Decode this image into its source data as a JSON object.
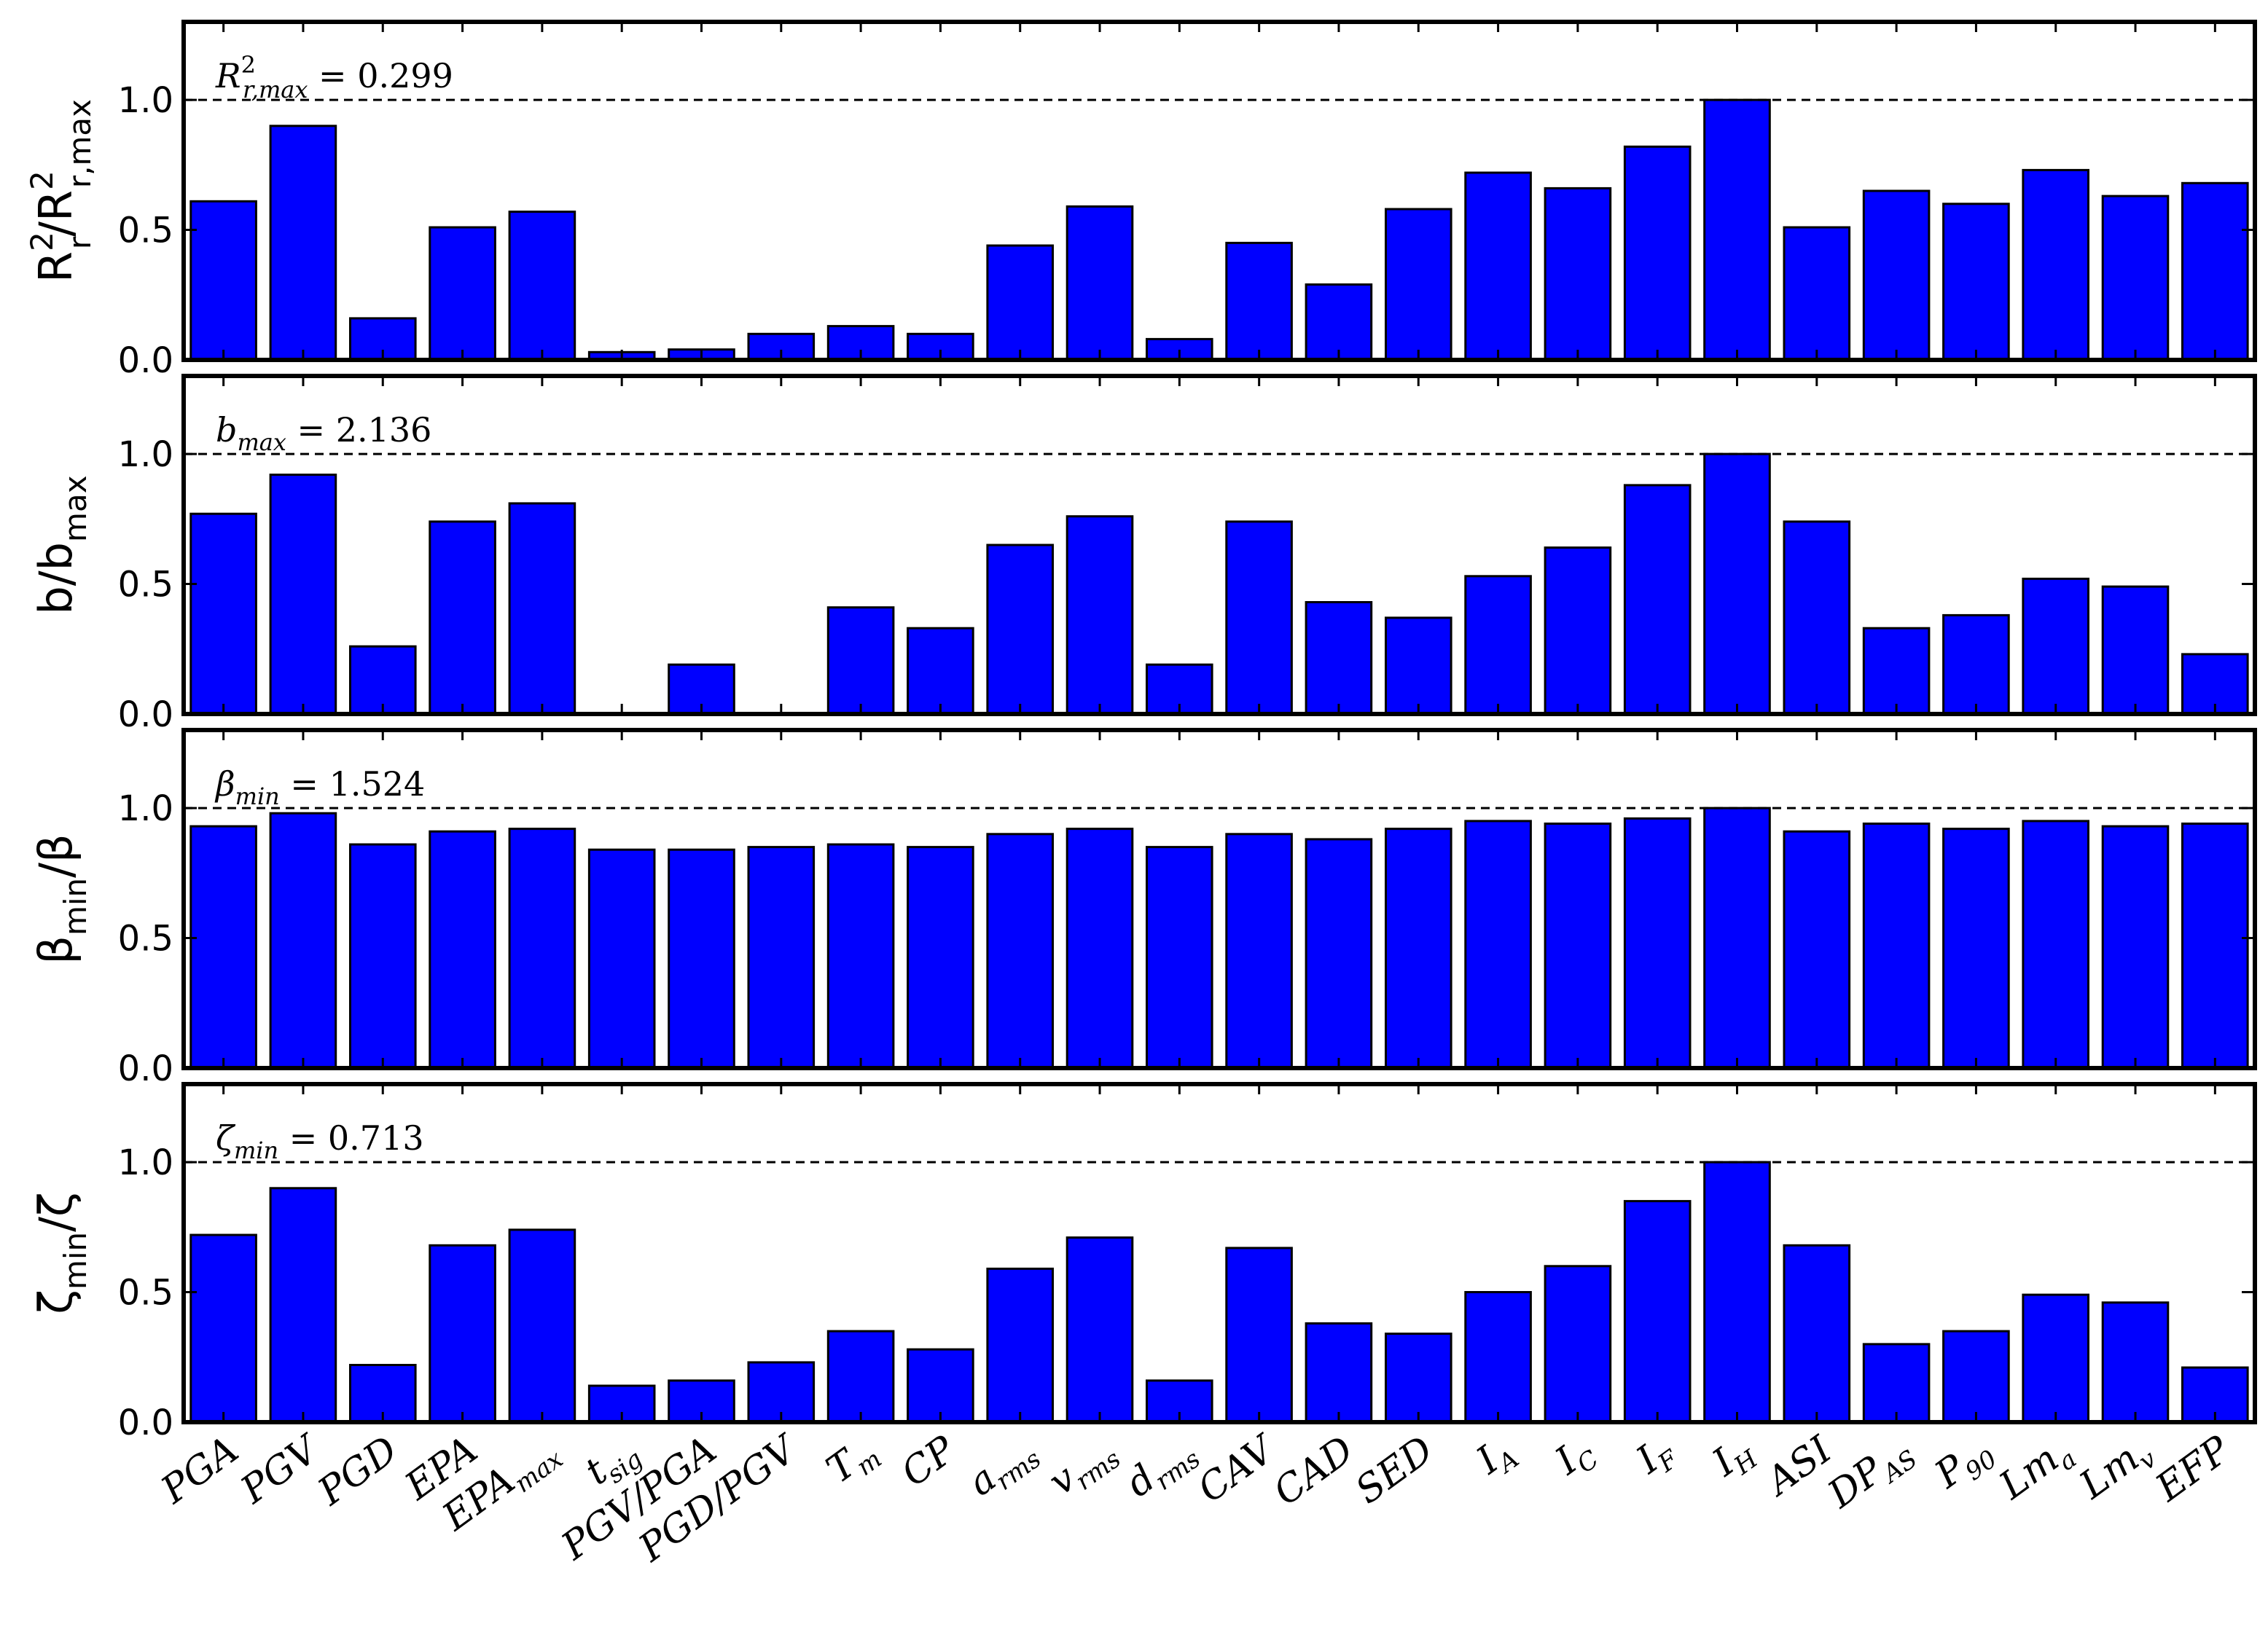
{
  "chart_data": {
    "type": "bar",
    "layout": "four vertically stacked bar panels sharing the x axis",
    "bar_color": "#0000ff",
    "categories": [
      "PGA",
      "PGV",
      "PGD",
      "EPA",
      "EPA_max",
      "t_sig",
      "PGV/PGA",
      "PGD/PGV",
      "T_m",
      "CP",
      "a_rms",
      "v_rms",
      "d_rms",
      "CAV",
      "CAD",
      "SED",
      "I_A",
      "I_C",
      "I_F",
      "I_H",
      "ASI",
      "DP_AS",
      "P_90",
      "Lm_a",
      "Lm_v",
      "EFP"
    ],
    "category_labels": [
      {
        "base": "PGA",
        "sub": ""
      },
      {
        "base": "PGV",
        "sub": ""
      },
      {
        "base": "PGD",
        "sub": ""
      },
      {
        "base": "EPA",
        "sub": ""
      },
      {
        "base": "EPA",
        "sub": "max"
      },
      {
        "base": "t",
        "sub": "sig"
      },
      {
        "base": "PGV/PGA",
        "sub": ""
      },
      {
        "base": "PGD/PGV",
        "sub": ""
      },
      {
        "base": "T",
        "sub": "m"
      },
      {
        "base": "CP",
        "sub": ""
      },
      {
        "base": "a",
        "sub": "rms"
      },
      {
        "base": "v",
        "sub": "rms"
      },
      {
        "base": "d",
        "sub": "rms"
      },
      {
        "base": "CAV",
        "sub": ""
      },
      {
        "base": "CAD",
        "sub": ""
      },
      {
        "base": "SED",
        "sub": ""
      },
      {
        "base": "I",
        "sub": "A"
      },
      {
        "base": "I",
        "sub": "C"
      },
      {
        "base": "I",
        "sub": "F"
      },
      {
        "base": "I",
        "sub": "H"
      },
      {
        "base": "ASI",
        "sub": ""
      },
      {
        "base": "DP",
        "sub": "AS"
      },
      {
        "base": "P",
        "sub": "90"
      },
      {
        "base": "Lm",
        "sub": "a"
      },
      {
        "base": "Lm",
        "sub": "v"
      },
      {
        "base": "EFP",
        "sub": ""
      }
    ],
    "ylim": [
      0,
      1.3
    ],
    "yticks": [
      "0.0",
      "0.5",
      "1.0"
    ],
    "reference_line": {
      "value": 1.0,
      "style": "dashed"
    },
    "panels": [
      {
        "ylabel": {
          "main": "R",
          "sup1": "2",
          "sub1": "r",
          "mid": "/R",
          "sup2": "2",
          "sub2": "r,max"
        },
        "annotation": {
          "symbol": "R",
          "sup": "2",
          "sub": "r,max",
          "value": "= 0.299"
        },
        "values": [
          0.61,
          0.9,
          0.16,
          0.51,
          0.57,
          0.03,
          0.04,
          0.1,
          0.13,
          0.1,
          0.44,
          0.59,
          0.08,
          0.45,
          0.29,
          0.58,
          0.72,
          0.66,
          0.82,
          1.0,
          0.51,
          0.65,
          0.6,
          0.73,
          0.63,
          0.68
        ]
      },
      {
        "ylabel": {
          "main": "b/b",
          "sub": "max"
        },
        "annotation": {
          "symbol": "b",
          "sub": "max",
          "value": "= 2.136"
        },
        "values": [
          0.77,
          0.92,
          0.26,
          0.74,
          0.81,
          0.0,
          0.19,
          0.0,
          0.41,
          0.33,
          0.65,
          0.76,
          0.19,
          0.74,
          0.43,
          0.37,
          0.53,
          0.64,
          0.88,
          1.0,
          0.74,
          0.33,
          0.38,
          0.52,
          0.49,
          0.23
        ]
      },
      {
        "ylabel": {
          "main": "β",
          "sub": "min",
          "tail": "/β"
        },
        "annotation": {
          "symbol": "β",
          "sub": "min",
          "value": "= 1.524"
        },
        "values": [
          0.93,
          0.98,
          0.86,
          0.91,
          0.92,
          0.84,
          0.84,
          0.85,
          0.86,
          0.85,
          0.9,
          0.92,
          0.85,
          0.9,
          0.88,
          0.92,
          0.95,
          0.94,
          0.96,
          1.0,
          0.91,
          0.94,
          0.92,
          0.95,
          0.93,
          0.94
        ]
      },
      {
        "ylabel": {
          "main": "ζ",
          "sub": "min",
          "tail": "/ζ"
        },
        "annotation": {
          "symbol": "ζ",
          "sub": "min",
          "value": "= 0.713"
        },
        "values": [
          0.72,
          0.9,
          0.22,
          0.68,
          0.74,
          0.14,
          0.16,
          0.23,
          0.35,
          0.28,
          0.59,
          0.71,
          0.16,
          0.67,
          0.38,
          0.34,
          0.5,
          0.6,
          0.85,
          1.0,
          0.68,
          0.3,
          0.35,
          0.49,
          0.46,
          0.21
        ]
      }
    ]
  }
}
